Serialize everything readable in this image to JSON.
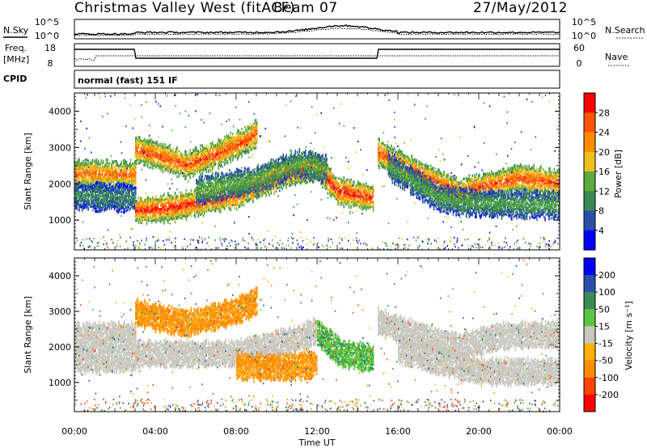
{
  "header": {
    "radar_title": "Christmas Valley West (fitACF)",
    "beam": "Beam 07",
    "date": "27/May/2012"
  },
  "top_panels": {
    "nsky_label": "N.Sky",
    "nsearch_label": "N.Search",
    "noise_ticks": [
      "10^5",
      "10^0"
    ],
    "freq_label": [
      "Freq.",
      "[MHz]"
    ],
    "freq_ticks": [
      "18",
      "8"
    ],
    "nave_label": "Nave",
    "nave_ticks": [
      "60",
      "0"
    ],
    "cpid_label": "CPID",
    "cpid_text": "normal (fast) 151 IF"
  },
  "chart_data": [
    {
      "type": "heatmap",
      "title": "",
      "xlabel": "Time UT",
      "ylabel": "Slant Range [km]",
      "x_ticks": [
        "00:00",
        "04:00",
        "08:00",
        "12:00",
        "16:00",
        "20:00",
        "00:00"
      ],
      "xlim_hours": [
        0,
        24
      ],
      "y_ticks": [
        1000,
        2000,
        3000,
        4000
      ],
      "ylim_km": [
        180,
        4500
      ],
      "colorbar": {
        "label": "Power [dB]",
        "ticks": [
          4,
          8,
          12,
          16,
          20,
          24,
          28
        ],
        "colors": [
          "#0000ff",
          "#2a4fa8",
          "#3a8a55",
          "#5aaa40",
          "#f0c020",
          "#ff8c00",
          "#ff5500",
          "#ff0000"
        ]
      },
      "bands": [
        {
          "name": "near-range-left",
          "points": [
            [
              0,
              2280
            ],
            [
              3,
              2240
            ]
          ],
          "value": 24
        },
        {
          "name": "1.5-hop-left",
          "points": [
            [
              0,
              1650
            ],
            [
              3,
              1600
            ]
          ],
          "value": 10
        },
        {
          "name": "lower-rising",
          "points": [
            [
              3,
              1250
            ],
            [
              5,
              1350
            ],
            [
              8,
              1700
            ],
            [
              10.5,
              2300
            ],
            [
              12,
              2450
            ],
            [
              13,
              1800
            ],
            [
              14.8,
              1600
            ]
          ],
          "value": 28
        },
        {
          "name": "upper-arc",
          "points": [
            [
              3,
              2950
            ],
            [
              4.5,
              2700
            ],
            [
              5.5,
              2500
            ],
            [
              7,
              2800
            ],
            [
              8.5,
              3200
            ],
            [
              9,
              3400
            ]
          ],
          "value": 26
        },
        {
          "name": "middle-green",
          "points": [
            [
              6,
              1800
            ],
            [
              9,
              2100
            ],
            [
              11,
              2550
            ],
            [
              12.5,
              2400
            ]
          ],
          "value": 14
        },
        {
          "name": "after-gap",
          "points": [
            [
              15,
              2850
            ],
            [
              16.5,
              2400
            ],
            [
              18,
              2000
            ],
            [
              19,
              1750
            ],
            [
              20,
              1900
            ],
            [
              22,
              2150
            ],
            [
              24,
              2000
            ]
          ],
          "value": 26
        },
        {
          "name": "after-gap-lower",
          "points": [
            [
              15.5,
              2500
            ],
            [
              18,
              1600
            ],
            [
              20,
              1450
            ],
            [
              24,
              1400
            ]
          ],
          "value": 12
        }
      ]
    },
    {
      "type": "heatmap",
      "title": "",
      "xlabel": "Time UT",
      "ylabel": "Slant Range [km]",
      "x_ticks": [
        "00:00",
        "04:00",
        "08:00",
        "12:00",
        "16:00",
        "20:00",
        "00:00"
      ],
      "xlim_hours": [
        0,
        24
      ],
      "y_ticks": [
        1000,
        2000,
        3000,
        4000
      ],
      "ylim_km": [
        180,
        4500
      ],
      "colorbar": {
        "label": "Velocity [m s⁻¹]",
        "ticks": [
          200,
          100,
          50,
          15,
          -15,
          -50,
          -100,
          -200
        ],
        "colors": [
          "#0000ff",
          "#2a4fa8",
          "#3a8a55",
          "#5ac840",
          "#c8c8c0",
          "#ffb000",
          "#ff8c00",
          "#ff4400",
          "#ff0000"
        ]
      },
      "bands": [
        {
          "name": "near-range-ground",
          "points": [
            [
              0,
              2300
            ],
            [
              3,
              2300
            ]
          ],
          "value": 0
        },
        {
          "name": "lower-ground",
          "points": [
            [
              0,
              1650
            ],
            [
              3,
              1650
            ]
          ],
          "value": 0
        },
        {
          "name": "ground-rising",
          "points": [
            [
              3,
              1800
            ],
            [
              8,
              1800
            ],
            [
              11,
              2200
            ],
            [
              12,
              2450
            ]
          ],
          "value": 0
        },
        {
          "name": "orange-arc",
          "points": [
            [
              3,
              2950
            ],
            [
              5.5,
              2650
            ],
            [
              8,
              3000
            ],
            [
              9,
              3300
            ]
          ],
          "value": -60
        },
        {
          "name": "orange-lower",
          "points": [
            [
              8,
              1450
            ],
            [
              10,
              1400
            ],
            [
              12,
              1500
            ]
          ],
          "value": -60
        },
        {
          "name": "green-tail",
          "points": [
            [
              12,
              2400
            ],
            [
              13.2,
              1800
            ],
            [
              14.8,
              1650
            ]
          ],
          "value": 40
        },
        {
          "name": "ground-after-gap",
          "points": [
            [
              15,
              2700
            ],
            [
              17,
              2300
            ],
            [
              19,
              2000
            ],
            [
              21,
              2300
            ],
            [
              24,
              2350
            ]
          ],
          "value": 0
        },
        {
          "name": "ground-after-gap-lower",
          "points": [
            [
              16,
              1900
            ],
            [
              20,
              1300
            ],
            [
              24,
              1300
            ]
          ],
          "value": 0
        }
      ]
    }
  ]
}
